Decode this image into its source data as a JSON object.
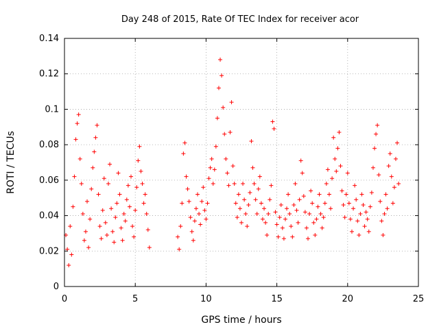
{
  "chart_data": {
    "type": "scatter",
    "title": "Day 248 of 2015, Rate Of TEC Index for receiver acor",
    "xlabel": "GPS time / hours",
    "ylabel": "ROTI / TECUs",
    "xlim": [
      0,
      25
    ],
    "ylim": [
      0,
      0.14
    ],
    "xticks": [
      0,
      5,
      10,
      15,
      20,
      25
    ],
    "xtick_labels": [
      "0",
      "5",
      "10",
      "15",
      "20",
      "25"
    ],
    "yticks": [
      0,
      0.02,
      0.04,
      0.06,
      0.08,
      0.1,
      0.12,
      0.14
    ],
    "ytick_labels": [
      "0",
      "0.02",
      "0.04",
      "0.06",
      "0.08",
      "0.1",
      "0.12",
      "0.14"
    ],
    "grid": true,
    "marker": "plus",
    "color": "#ff0000",
    "series": [
      {
        "points": [
          [
            0.1,
            0.029
          ],
          [
            0.2,
            0.021
          ],
          [
            0.3,
            0.012
          ],
          [
            0.4,
            0.034
          ],
          [
            0.5,
            0.018
          ],
          [
            0.6,
            0.045
          ],
          [
            0.7,
            0.062
          ],
          [
            0.8,
            0.083
          ],
          [
            0.9,
            0.092
          ],
          [
            1.0,
            0.097
          ],
          [
            1.1,
            0.072
          ],
          [
            1.2,
            0.058
          ],
          [
            1.3,
            0.041
          ],
          [
            1.4,
            0.026
          ],
          [
            1.5,
            0.031
          ],
          [
            1.6,
            0.048
          ],
          [
            1.7,
            0.022
          ],
          [
            1.8,
            0.038
          ],
          [
            1.9,
            0.055
          ],
          [
            2.0,
            0.067
          ],
          [
            2.1,
            0.076
          ],
          [
            2.2,
            0.084
          ],
          [
            2.3,
            0.091
          ],
          [
            2.4,
            0.052
          ],
          [
            2.5,
            0.034
          ],
          [
            2.6,
            0.027
          ],
          [
            2.7,
            0.043
          ],
          [
            2.8,
            0.061
          ],
          [
            2.9,
            0.036
          ],
          [
            3.0,
            0.029
          ],
          [
            3.1,
            0.058
          ],
          [
            3.2,
            0.069
          ],
          [
            3.3,
            0.044
          ],
          [
            3.4,
            0.031
          ],
          [
            3.5,
            0.025
          ],
          [
            3.6,
            0.039
          ],
          [
            3.7,
            0.047
          ],
          [
            3.8,
            0.064
          ],
          [
            3.9,
            0.052
          ],
          [
            4.0,
            0.033
          ],
          [
            4.1,
            0.026
          ],
          [
            4.2,
            0.041
          ],
          [
            4.3,
            0.037
          ],
          [
            4.4,
            0.049
          ],
          [
            4.5,
            0.057
          ],
          [
            4.6,
            0.045
          ],
          [
            4.7,
            0.062
          ],
          [
            4.8,
            0.034
          ],
          [
            4.9,
            0.028
          ],
          [
            5.0,
            0.043
          ],
          [
            5.1,
            0.056
          ],
          [
            5.2,
            0.071
          ],
          [
            5.3,
            0.079
          ],
          [
            5.4,
            0.065
          ],
          [
            5.5,
            0.058
          ],
          [
            5.6,
            0.047
          ],
          [
            5.7,
            0.052
          ],
          [
            5.8,
            0.041
          ],
          [
            5.9,
            0.032
          ],
          [
            6.0,
            0.022
          ],
          [
            8.0,
            0.028
          ],
          [
            8.1,
            0.021
          ],
          [
            8.2,
            0.034
          ],
          [
            8.3,
            0.047
          ],
          [
            8.4,
            0.075
          ],
          [
            8.5,
            0.081
          ],
          [
            8.6,
            0.062
          ],
          [
            8.7,
            0.055
          ],
          [
            8.8,
            0.048
          ],
          [
            8.9,
            0.039
          ],
          [
            9.0,
            0.031
          ],
          [
            9.1,
            0.026
          ],
          [
            9.2,
            0.037
          ],
          [
            9.3,
            0.044
          ],
          [
            9.4,
            0.052
          ],
          [
            9.5,
            0.041
          ],
          [
            9.6,
            0.035
          ],
          [
            9.7,
            0.048
          ],
          [
            9.8,
            0.056
          ],
          [
            9.9,
            0.043
          ],
          [
            10.0,
            0.038
          ],
          [
            10.1,
            0.047
          ],
          [
            10.2,
            0.061
          ],
          [
            10.3,
            0.067
          ],
          [
            10.4,
            0.072
          ],
          [
            10.5,
            0.058
          ],
          [
            10.6,
            0.066
          ],
          [
            10.7,
            0.079
          ],
          [
            10.8,
            0.095
          ],
          [
            10.9,
            0.112
          ],
          [
            11.0,
            0.128
          ],
          [
            11.1,
            0.119
          ],
          [
            11.2,
            0.101
          ],
          [
            11.3,
            0.086
          ],
          [
            11.4,
            0.072
          ],
          [
            11.5,
            0.064
          ],
          [
            11.6,
            0.057
          ],
          [
            11.7,
            0.087
          ],
          [
            11.8,
            0.104
          ],
          [
            11.9,
            0.068
          ],
          [
            12.0,
            0.058
          ],
          [
            12.1,
            0.047
          ],
          [
            12.2,
            0.039
          ],
          [
            12.3,
            0.052
          ],
          [
            12.4,
            0.044
          ],
          [
            12.5,
            0.036
          ],
          [
            12.6,
            0.058
          ],
          [
            12.7,
            0.049
          ],
          [
            12.8,
            0.041
          ],
          [
            12.9,
            0.034
          ],
          [
            13.0,
            0.046
          ],
          [
            13.1,
            0.053
          ],
          [
            13.2,
            0.082
          ],
          [
            13.3,
            0.067
          ],
          [
            13.4,
            0.058
          ],
          [
            13.5,
            0.049
          ],
          [
            13.6,
            0.041
          ],
          [
            13.7,
            0.055
          ],
          [
            13.8,
            0.062
          ],
          [
            13.9,
            0.047
          ],
          [
            14.0,
            0.038
          ],
          [
            14.1,
            0.044
          ],
          [
            14.2,
            0.036
          ],
          [
            14.3,
            0.029
          ],
          [
            14.4,
            0.041
          ],
          [
            14.5,
            0.049
          ],
          [
            14.6,
            0.057
          ],
          [
            14.7,
            0.093
          ],
          [
            14.8,
            0.089
          ],
          [
            14.9,
            0.042
          ],
          [
            15.0,
            0.035
          ],
          [
            15.1,
            0.028
          ],
          [
            15.2,
            0.039
          ],
          [
            15.3,
            0.046
          ],
          [
            15.4,
            0.033
          ],
          [
            15.5,
            0.027
          ],
          [
            15.6,
            0.038
          ],
          [
            15.7,
            0.044
          ],
          [
            15.8,
            0.052
          ],
          [
            15.9,
            0.041
          ],
          [
            16.0,
            0.034
          ],
          [
            16.1,
            0.028
          ],
          [
            16.2,
            0.046
          ],
          [
            16.3,
            0.058
          ],
          [
            16.4,
            0.043
          ],
          [
            16.5,
            0.036
          ],
          [
            16.6,
            0.049
          ],
          [
            16.7,
            0.071
          ],
          [
            16.8,
            0.064
          ],
          [
            16.9,
            0.051
          ],
          [
            17.0,
            0.042
          ],
          [
            17.1,
            0.033
          ],
          [
            17.2,
            0.027
          ],
          [
            17.3,
            0.041
          ],
          [
            17.4,
            0.054
          ],
          [
            17.5,
            0.047
          ],
          [
            17.6,
            0.036
          ],
          [
            17.7,
            0.029
          ],
          [
            17.8,
            0.038
          ],
          [
            17.9,
            0.045
          ],
          [
            18.0,
            0.052
          ],
          [
            18.1,
            0.041
          ],
          [
            18.2,
            0.033
          ],
          [
            18.3,
            0.039
          ],
          [
            18.4,
            0.047
          ],
          [
            18.5,
            0.058
          ],
          [
            18.6,
            0.066
          ],
          [
            18.7,
            0.052
          ],
          [
            18.8,
            0.044
          ],
          [
            18.9,
            0.061
          ],
          [
            19.0,
            0.084
          ],
          [
            19.1,
            0.072
          ],
          [
            19.2,
            0.065
          ],
          [
            19.3,
            0.078
          ],
          [
            19.4,
            0.087
          ],
          [
            19.5,
            0.068
          ],
          [
            19.6,
            0.054
          ],
          [
            19.7,
            0.046
          ],
          [
            19.8,
            0.039
          ],
          [
            19.9,
            0.052
          ],
          [
            20.0,
            0.064
          ],
          [
            20.1,
            0.047
          ],
          [
            20.2,
            0.038
          ],
          [
            20.3,
            0.031
          ],
          [
            20.4,
            0.044
          ],
          [
            20.5,
            0.057
          ],
          [
            20.6,
            0.049
          ],
          [
            20.7,
            0.037
          ],
          [
            20.8,
            0.029
          ],
          [
            20.9,
            0.041
          ],
          [
            21.0,
            0.052
          ],
          [
            21.1,
            0.046
          ],
          [
            21.2,
            0.034
          ],
          [
            21.3,
            0.042
          ],
          [
            21.4,
            0.038
          ],
          [
            21.5,
            0.031
          ],
          [
            21.6,
            0.045
          ],
          [
            21.7,
            0.053
          ],
          [
            21.8,
            0.067
          ],
          [
            21.9,
            0.078
          ],
          [
            22.0,
            0.086
          ],
          [
            22.1,
            0.091
          ],
          [
            22.2,
            0.063
          ],
          [
            22.3,
            0.048
          ],
          [
            22.4,
            0.037
          ],
          [
            22.5,
            0.029
          ],
          [
            22.6,
            0.041
          ],
          [
            22.7,
            0.052
          ],
          [
            22.8,
            0.044
          ],
          [
            22.9,
            0.068
          ],
          [
            23.0,
            0.075
          ],
          [
            23.1,
            0.062
          ],
          [
            23.2,
            0.047
          ],
          [
            23.3,
            0.056
          ],
          [
            23.4,
            0.072
          ],
          [
            23.5,
            0.081
          ],
          [
            23.6,
            0.058
          ]
        ]
      }
    ]
  }
}
